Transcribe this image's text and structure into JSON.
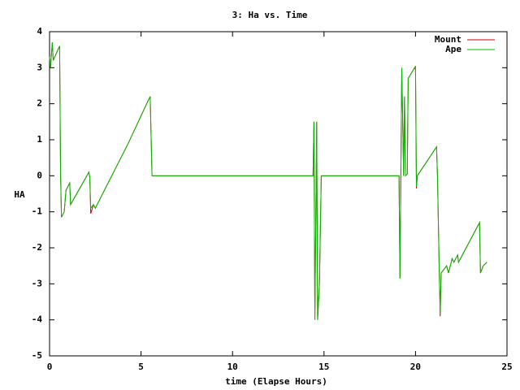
{
  "chart_data": {
    "type": "line",
    "title": "3: Ha vs. Time",
    "x_label": "time (Elapse Hours)",
    "y_label": "HA",
    "x": [
      0,
      0.05,
      0.15,
      0.2,
      0.5,
      0.55,
      0.6,
      0.65,
      0.8,
      0.9,
      1.1,
      1.15,
      2.15,
      2.2,
      2.25,
      2.4,
      2.5,
      4.3,
      5.4,
      5.5,
      5.6,
      14.4,
      14.45,
      14.5,
      14.6,
      14.65,
      14.75,
      14.85,
      19.1,
      19.15,
      19.25,
      19.35,
      19.4,
      19.45,
      19.55,
      19.6,
      19.95,
      20.0,
      20.05,
      20.1,
      21.15,
      21.2,
      21.3,
      21.35,
      21.4,
      21.7,
      21.8,
      22.0,
      22.1,
      22.3,
      22.35,
      23.5,
      23.55,
      23.7,
      23.9
    ],
    "series": [
      {
        "name": "Mount",
        "color": "#cc0000",
        "values": [
          3.3,
          3.0,
          3.7,
          3.2,
          3.55,
          3.6,
          0.1,
          -1.15,
          -1.0,
          -0.4,
          -0.2,
          -0.8,
          0.1,
          -0.05,
          -1.05,
          -0.8,
          -0.9,
          0.9,
          2.1,
          2.2,
          0.0,
          0.0,
          1.5,
          -4.0,
          1.5,
          -4.0,
          -3.0,
          0.0,
          0.0,
          -2.85,
          3.0,
          0.0,
          2.2,
          0.0,
          0.05,
          2.7,
          3.0,
          2.95,
          -0.35,
          0.0,
          0.8,
          0.0,
          -2.7,
          -3.9,
          -2.7,
          -2.5,
          -2.7,
          -2.3,
          -2.4,
          -2.2,
          -2.4,
          -1.3,
          -2.7,
          -2.5,
          -2.4
        ]
      },
      {
        "name": "Ape",
        "color": "#00bb00",
        "values": [
          3.3,
          3.0,
          3.7,
          3.2,
          3.55,
          3.6,
          0.1,
          -1.15,
          -1.0,
          -0.4,
          -0.2,
          -0.8,
          0.1,
          -0.05,
          -0.9,
          -0.8,
          -0.9,
          0.9,
          2.1,
          2.2,
          0.0,
          0.0,
          1.5,
          -4.0,
          1.5,
          -4.0,
          -3.0,
          0.0,
          0.0,
          -2.85,
          3.0,
          0.0,
          2.2,
          0.0,
          0.05,
          2.7,
          3.0,
          3.05,
          -0.3,
          0.0,
          0.8,
          0.0,
          -2.7,
          -3.8,
          -2.7,
          -2.5,
          -2.7,
          -2.3,
          -2.4,
          -2.2,
          -2.4,
          -1.3,
          -2.7,
          -2.5,
          -2.4
        ]
      }
    ],
    "xlim": [
      0,
      25
    ],
    "ylim": [
      -5,
      4
    ],
    "xticks": [
      0,
      5,
      10,
      15,
      20,
      25
    ],
    "yticks": [
      -5,
      -4,
      -3,
      -2,
      -1,
      0,
      1,
      2,
      3,
      4
    ],
    "legend": "top-right",
    "grid": false
  }
}
